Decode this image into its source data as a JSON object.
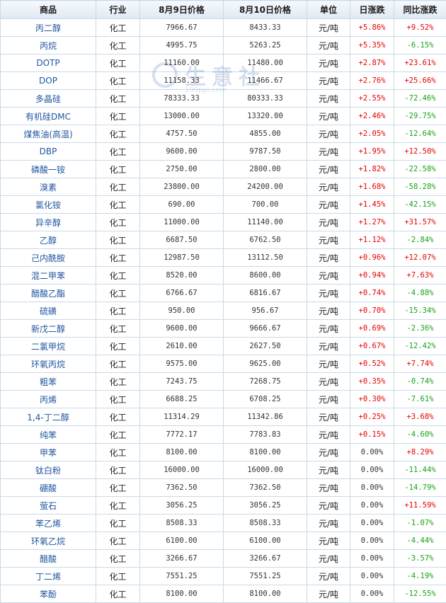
{
  "headers": [
    "商品",
    "行业",
    "8月9日价格",
    "8月10日价格",
    "单位",
    "日涨跌",
    "同比涨跌"
  ],
  "watermark": {
    "text": "生意社",
    "url": "100ppi.com"
  },
  "colors": {
    "up": "#e60000",
    "down": "#17a317",
    "link": "#1f55a0",
    "border": "#c9d9e8"
  },
  "rows": [
    {
      "name": "丙二醇",
      "industry": "化工",
      "p1": "7966.67",
      "p2": "8433.33",
      "unit": "元/吨",
      "day": "+5.86%",
      "yoy": "+9.52%"
    },
    {
      "name": "丙烷",
      "industry": "化工",
      "p1": "4995.75",
      "p2": "5263.25",
      "unit": "元/吨",
      "day": "+5.35%",
      "yoy": "-6.15%"
    },
    {
      "name": "DOTP",
      "industry": "化工",
      "p1": "11160.00",
      "p2": "11480.00",
      "unit": "元/吨",
      "day": "+2.87%",
      "yoy": "+23.61%"
    },
    {
      "name": "DOP",
      "industry": "化工",
      "p1": "11158.33",
      "p2": "11466.67",
      "unit": "元/吨",
      "day": "+2.76%",
      "yoy": "+25.66%"
    },
    {
      "name": "多晶硅",
      "industry": "化工",
      "p1": "78333.33",
      "p2": "80333.33",
      "unit": "元/吨",
      "day": "+2.55%",
      "yoy": "-72.46%"
    },
    {
      "name": "有机硅DMC",
      "industry": "化工",
      "p1": "13000.00",
      "p2": "13320.00",
      "unit": "元/吨",
      "day": "+2.46%",
      "yoy": "-29.75%"
    },
    {
      "name": "煤焦油(高温)",
      "industry": "化工",
      "p1": "4757.50",
      "p2": "4855.00",
      "unit": "元/吨",
      "day": "+2.05%",
      "yoy": "-12.64%"
    },
    {
      "name": "DBP",
      "industry": "化工",
      "p1": "9600.00",
      "p2": "9787.50",
      "unit": "元/吨",
      "day": "+1.95%",
      "yoy": "+12.50%"
    },
    {
      "name": "磷酸一铵",
      "industry": "化工",
      "p1": "2750.00",
      "p2": "2800.00",
      "unit": "元/吨",
      "day": "+1.82%",
      "yoy": "-22.58%"
    },
    {
      "name": "溴素",
      "industry": "化工",
      "p1": "23800.00",
      "p2": "24200.00",
      "unit": "元/吨",
      "day": "+1.68%",
      "yoy": "-58.28%"
    },
    {
      "name": "氯化铵",
      "industry": "化工",
      "p1": "690.00",
      "p2": "700.00",
      "unit": "元/吨",
      "day": "+1.45%",
      "yoy": "-42.15%"
    },
    {
      "name": "异辛醇",
      "industry": "化工",
      "p1": "11000.00",
      "p2": "11140.00",
      "unit": "元/吨",
      "day": "+1.27%",
      "yoy": "+31.57%"
    },
    {
      "name": "乙醇",
      "industry": "化工",
      "p1": "6687.50",
      "p2": "6762.50",
      "unit": "元/吨",
      "day": "+1.12%",
      "yoy": "-2.84%"
    },
    {
      "name": "己内酰胺",
      "industry": "化工",
      "p1": "12987.50",
      "p2": "13112.50",
      "unit": "元/吨",
      "day": "+0.96%",
      "yoy": "+12.07%"
    },
    {
      "name": "混二甲苯",
      "industry": "化工",
      "p1": "8520.00",
      "p2": "8600.00",
      "unit": "元/吨",
      "day": "+0.94%",
      "yoy": "+7.63%"
    },
    {
      "name": "醋酸乙酯",
      "industry": "化工",
      "p1": "6766.67",
      "p2": "6816.67",
      "unit": "元/吨",
      "day": "+0.74%",
      "yoy": "-4.88%"
    },
    {
      "name": "硫磺",
      "industry": "化工",
      "p1": "950.00",
      "p2": "956.67",
      "unit": "元/吨",
      "day": "+0.70%",
      "yoy": "-15.34%"
    },
    {
      "name": "新戊二醇",
      "industry": "化工",
      "p1": "9600.00",
      "p2": "9666.67",
      "unit": "元/吨",
      "day": "+0.69%",
      "yoy": "-2.36%"
    },
    {
      "name": "二氯甲烷",
      "industry": "化工",
      "p1": "2610.00",
      "p2": "2627.50",
      "unit": "元/吨",
      "day": "+0.67%",
      "yoy": "-12.42%"
    },
    {
      "name": "环氧丙烷",
      "industry": "化工",
      "p1": "9575.00",
      "p2": "9625.00",
      "unit": "元/吨",
      "day": "+0.52%",
      "yoy": "+7.74%"
    },
    {
      "name": "粗苯",
      "industry": "化工",
      "p1": "7243.75",
      "p2": "7268.75",
      "unit": "元/吨",
      "day": "+0.35%",
      "yoy": "-0.74%"
    },
    {
      "name": "丙烯",
      "industry": "化工",
      "p1": "6688.25",
      "p2": "6708.25",
      "unit": "元/吨",
      "day": "+0.30%",
      "yoy": "-7.61%"
    },
    {
      "name": "1,4-丁二醇",
      "industry": "化工",
      "p1": "11314.29",
      "p2": "11342.86",
      "unit": "元/吨",
      "day": "+0.25%",
      "yoy": "+3.68%"
    },
    {
      "name": "纯苯",
      "industry": "化工",
      "p1": "7772.17",
      "p2": "7783.83",
      "unit": "元/吨",
      "day": "+0.15%",
      "yoy": "-4.60%"
    },
    {
      "name": "甲苯",
      "industry": "化工",
      "p1": "8100.00",
      "p2": "8100.00",
      "unit": "元/吨",
      "day": "0.00%",
      "yoy": "+8.29%"
    },
    {
      "name": "钛白粉",
      "industry": "化工",
      "p1": "16000.00",
      "p2": "16000.00",
      "unit": "元/吨",
      "day": "0.00%",
      "yoy": "-11.44%"
    },
    {
      "name": "硼酸",
      "industry": "化工",
      "p1": "7362.50",
      "p2": "7362.50",
      "unit": "元/吨",
      "day": "0.00%",
      "yoy": "-14.79%"
    },
    {
      "name": "萤石",
      "industry": "化工",
      "p1": "3056.25",
      "p2": "3056.25",
      "unit": "元/吨",
      "day": "0.00%",
      "yoy": "+11.59%"
    },
    {
      "name": "苯乙烯",
      "industry": "化工",
      "p1": "8508.33",
      "p2": "8508.33",
      "unit": "元/吨",
      "day": "0.00%",
      "yoy": "-1.07%"
    },
    {
      "name": "环氧乙烷",
      "industry": "化工",
      "p1": "6100.00",
      "p2": "6100.00",
      "unit": "元/吨",
      "day": "0.00%",
      "yoy": "-4.44%"
    },
    {
      "name": "醋酸",
      "industry": "化工",
      "p1": "3266.67",
      "p2": "3266.67",
      "unit": "元/吨",
      "day": "0.00%",
      "yoy": "-3.57%"
    },
    {
      "name": "丁二烯",
      "industry": "化工",
      "p1": "7551.25",
      "p2": "7551.25",
      "unit": "元/吨",
      "day": "0.00%",
      "yoy": "-4.19%"
    },
    {
      "name": "苯酚",
      "industry": "化工",
      "p1": "8100.00",
      "p2": "8100.00",
      "unit": "元/吨",
      "day": "0.00%",
      "yoy": "-12.55%"
    }
  ]
}
